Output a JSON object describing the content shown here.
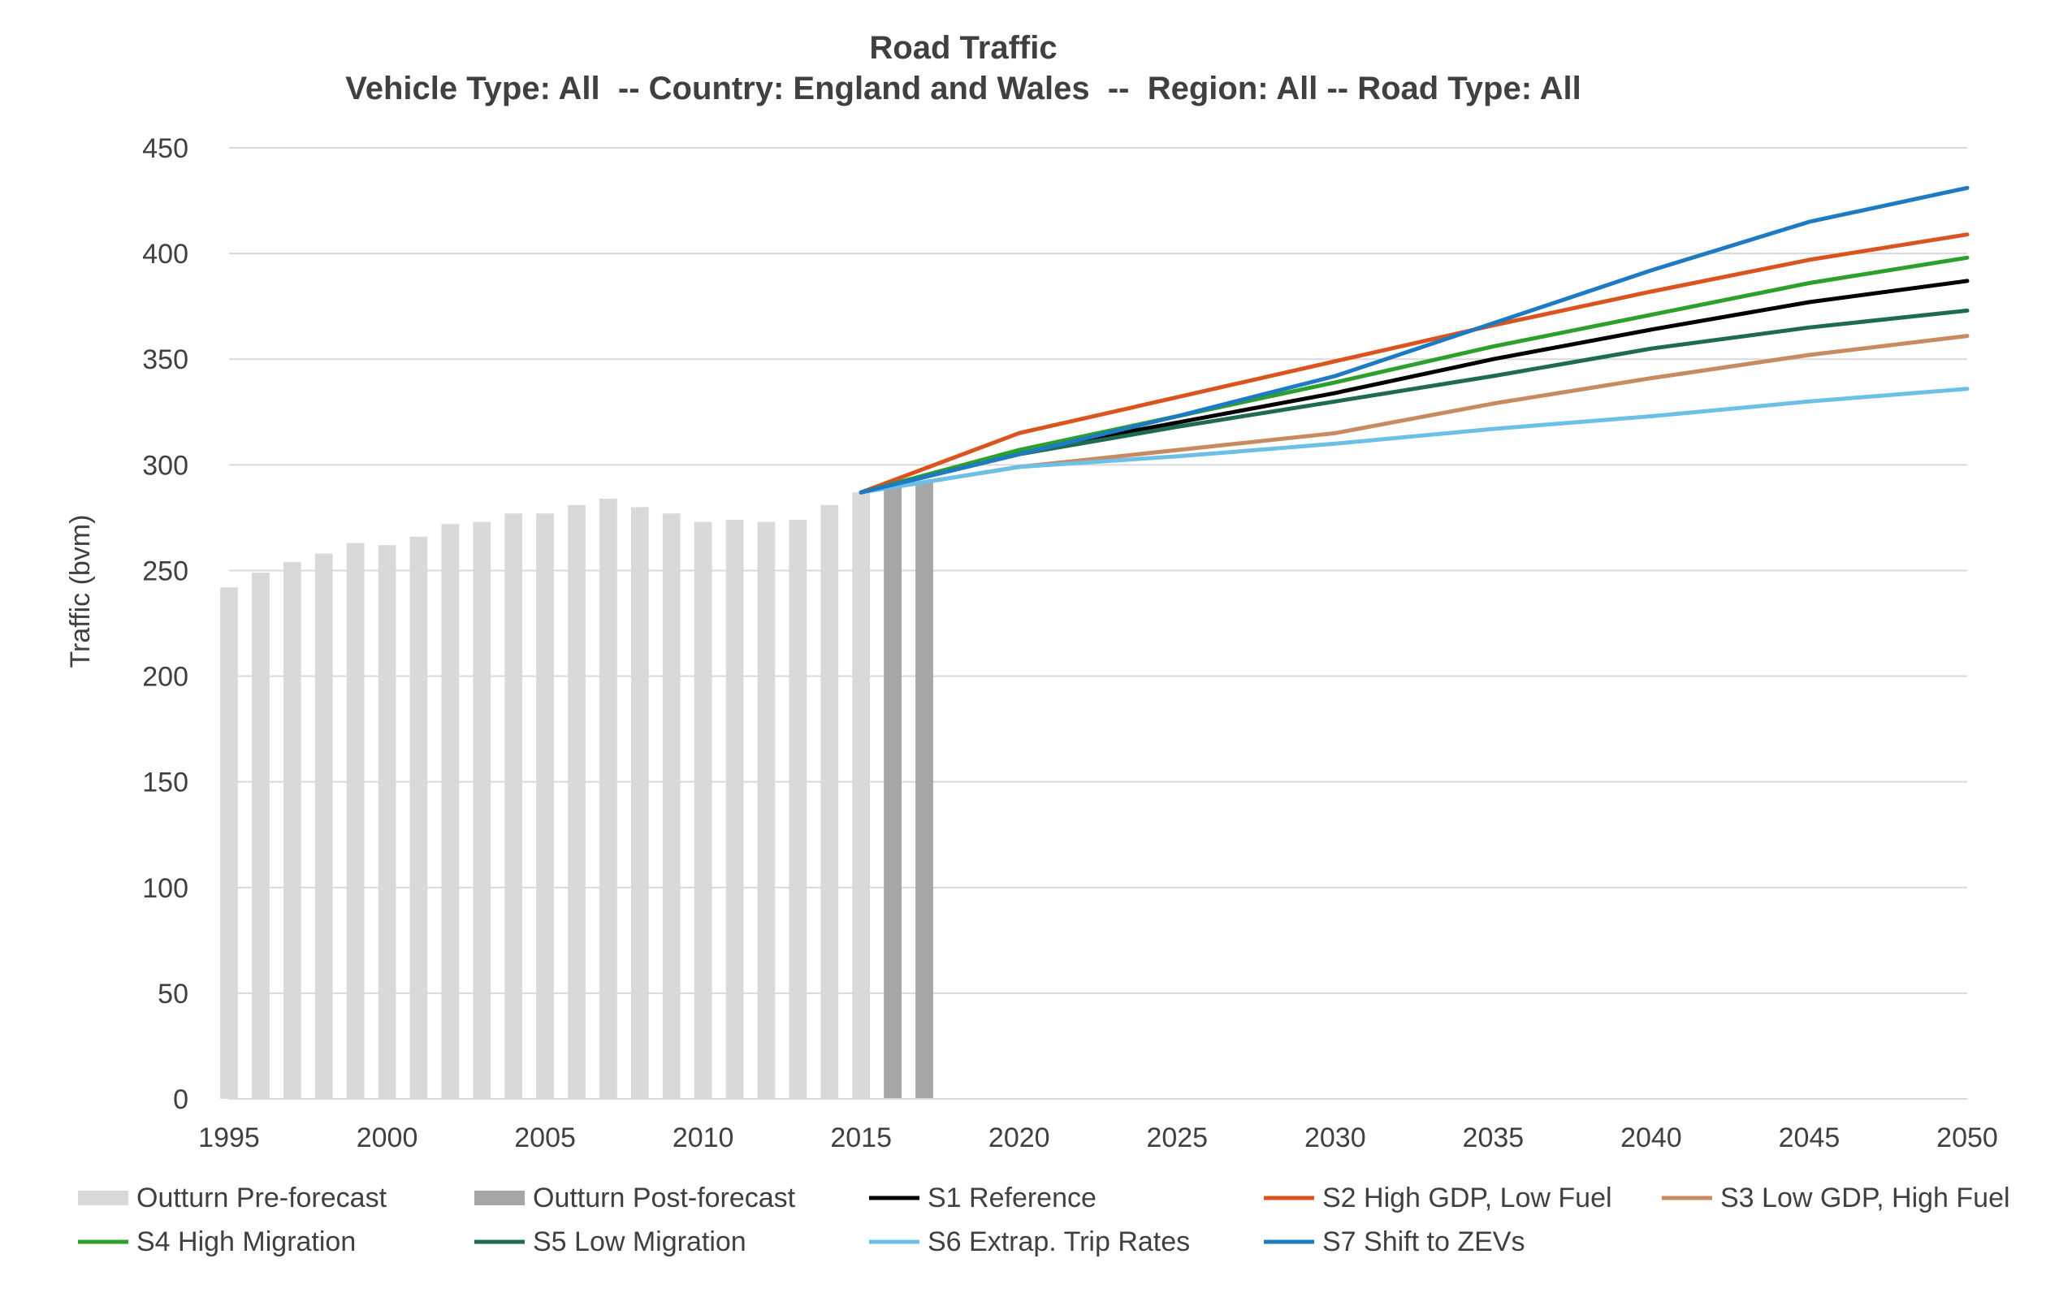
{
  "chart_data": {
    "type": "bar+line",
    "title": "Road Traffic",
    "subtitle": "Vehicle Type: All  -- Country: England and Wales  --  Region: All -- Road Type: All",
    "ylabel": "Traffic (bvm)",
    "xlabel": "",
    "ylim": [
      0,
      450
    ],
    "yticks": [
      0,
      50,
      100,
      150,
      200,
      250,
      300,
      350,
      400,
      450
    ],
    "xlim": [
      1995,
      2050
    ],
    "xticks": [
      1995,
      2000,
      2005,
      2010,
      2015,
      2020,
      2025,
      2030,
      2035,
      2040,
      2045,
      2050
    ],
    "grid": "horizontal",
    "legend_position": "bottom",
    "bars": [
      {
        "name": "Outturn Pre-forecast",
        "color": "#d9d9d9",
        "x": [
          1995,
          1996,
          1997,
          1998,
          1999,
          2000,
          2001,
          2002,
          2003,
          2004,
          2005,
          2006,
          2007,
          2008,
          2009,
          2010,
          2011,
          2012,
          2013,
          2014,
          2015
        ],
        "values": [
          242,
          249,
          254,
          258,
          263,
          262,
          266,
          272,
          273,
          277,
          277,
          281,
          284,
          280,
          277,
          273,
          274,
          273,
          274,
          281,
          287
        ]
      },
      {
        "name": "Outturn Post-forecast",
        "color": "#a6a6a6",
        "x": [
          2016,
          2017
        ],
        "values": [
          290,
          292
        ]
      }
    ],
    "series": [
      {
        "name": "S1 Reference",
        "color": "#000000",
        "x": [
          2015,
          2020,
          2025,
          2030,
          2035,
          2040,
          2045,
          2050
        ],
        "values": [
          287,
          306,
          320,
          334,
          350,
          364,
          377,
          387
        ]
      },
      {
        "name": "S2 High GDP, Low Fuel",
        "color": "#d9541e",
        "x": [
          2015,
          2020,
          2025,
          2030,
          2035,
          2040,
          2045,
          2050
        ],
        "values": [
          287,
          315,
          332,
          349,
          366,
          382,
          397,
          409
        ]
      },
      {
        "name": "S3 Low GDP, High Fuel",
        "color": "#c88a60",
        "x": [
          2015,
          2020,
          2025,
          2030,
          2035,
          2040,
          2045,
          2050
        ],
        "values": [
          287,
          299,
          307,
          315,
          329,
          341,
          352,
          361
        ]
      },
      {
        "name": "S4 High Migration",
        "color": "#2ca02c",
        "x": [
          2015,
          2020,
          2025,
          2030,
          2035,
          2040,
          2045,
          2050
        ],
        "values": [
          287,
          307,
          323,
          339,
          356,
          371,
          386,
          398
        ]
      },
      {
        "name": "S5 Low Migration",
        "color": "#1e6b52",
        "x": [
          2015,
          2020,
          2025,
          2030,
          2035,
          2040,
          2045,
          2050
        ],
        "values": [
          287,
          305,
          318,
          330,
          342,
          355,
          365,
          373
        ]
      },
      {
        "name": "S6 Extrap. Trip Rates",
        "color": "#6cc0e5",
        "x": [
          2015,
          2020,
          2025,
          2030,
          2035,
          2040,
          2045,
          2050
        ],
        "values": [
          287,
          299,
          304,
          310,
          317,
          323,
          330,
          336
        ]
      },
      {
        "name": "S7 Shift to ZEVs",
        "color": "#1f7bc1",
        "x": [
          2015,
          2020,
          2025,
          2030,
          2035,
          2040,
          2045,
          2050
        ],
        "values": [
          287,
          305,
          323,
          342,
          367,
          392,
          415,
          431
        ]
      }
    ]
  }
}
